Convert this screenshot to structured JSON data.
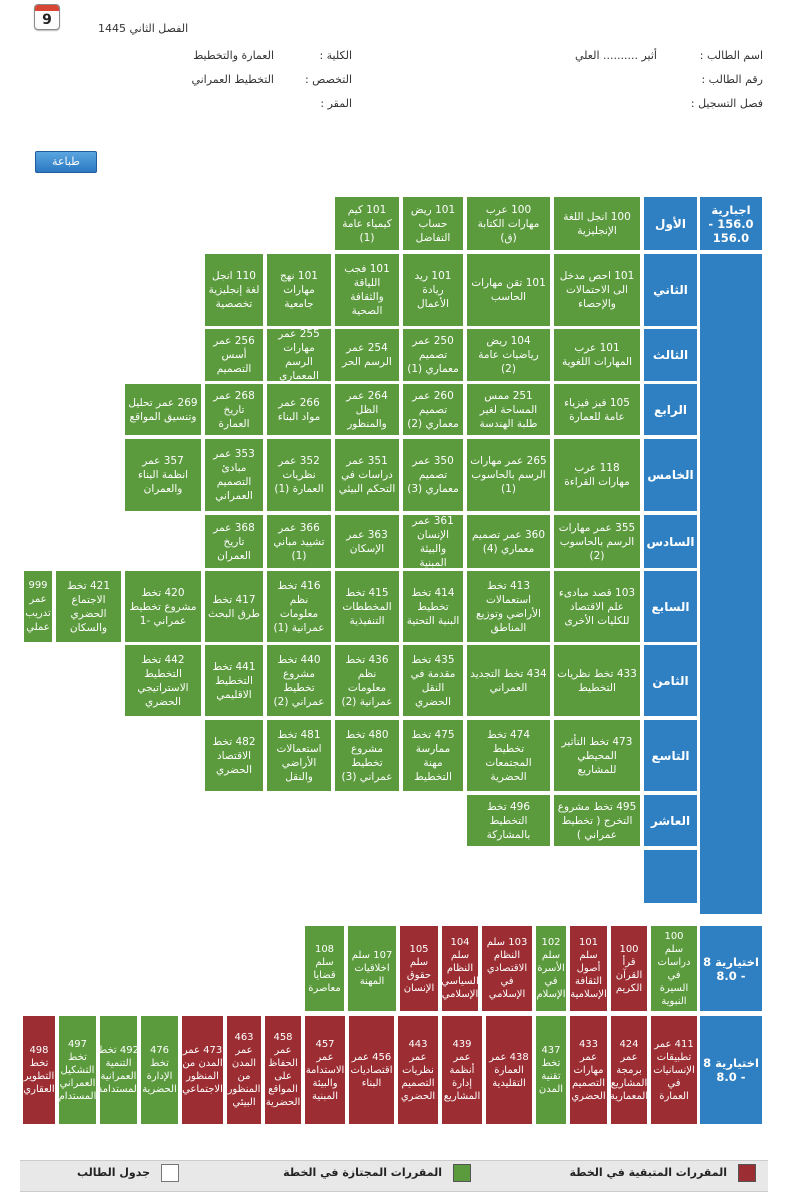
{
  "header": {
    "calendar_day": "9",
    "semester": "الفصل الثاني 1445",
    "student_name_label": "اسم الطالب :",
    "student_name_value": "أثير .......... العلي",
    "student_id_label": "رقم الطالب :",
    "reg_term_label": "فصل التسجيل :",
    "college_label": "الكلية :",
    "college_value": "العمارة والتخطيط",
    "major_label": "التخصص :",
    "major_value": "التخطيط العمراني",
    "campus_label": "المقر :"
  },
  "print_label": "طباعة",
  "mandatory_label": "اجبارية 156.0 - 156.0",
  "terms": {
    "t1": "الأول",
    "t2": "الثاني",
    "t3": "الثالث",
    "t4": "الرابع",
    "t5": "الخامس",
    "t6": "السادس",
    "t7": "السابع",
    "t8": "الثامن",
    "t9": "التاسع",
    "t10": "العاشر"
  },
  "courses": {
    "r1": [
      "100 انجل اللغة الإنجليزية",
      "100 عرب مهارات الكتابة (ق)",
      "101 ريض حساب التفاضل",
      "101 كيم كيمياء عامة (1)"
    ],
    "r2": [
      "101 احص مدخل الى الاحتمالات والإحصاء",
      "101 تقن مهارات الحاسب",
      "101 ريد ريادة الأعمال",
      "101 فجب اللياقة والثقافة الصحية",
      "101 نهج مهارات جامعية",
      "110 انجل لغة إنجليزية تخصصية"
    ],
    "r3": [
      "101 عرب المهارات اللغوية",
      "104 ريض رياضيات عامة (2)",
      "250 عمر تصميم معماري (1)",
      "254 عمر الرسم الحر",
      "255 عمر مهارات الرسم المعماري",
      "256 عمر أسس التصميم"
    ],
    "r4": [
      "105 فيز فيزياء عامة للعمارة",
      "251 ممس المساحة لغير طلبة الهندسة",
      "260 عمر تصميم معماري (2)",
      "264 عمر الظل والمنظور",
      "266 عمر مواد البناء",
      "268 عمر تاريخ العمارة",
      "269 عمر تحليل وتنسيق المواقع"
    ],
    "r5": [
      "118 عرب مهارات القراءة",
      "265 عمر مهارات الرسم بالحاسوب (1)",
      "350 عمر تصميم معماري (3)",
      "351 عمر دراسات في التحكم البيئي",
      "352 عمر نظريات العمارة (1)",
      "353 عمر مبادئ التصميم العمراني",
      "357 عمر انظمة البناء والعمران"
    ],
    "r6": [
      "355 عمر مهارات الرسم بالحاسوب (2)",
      "360 عمر تصميم معماري (4)",
      "361 عمر الإنسان والبيئة المبنية",
      "363 عمر الإسكان",
      "366 عمر تشييد مباني (1)",
      "368 عمر تاريخ العمران"
    ],
    "r7": [
      "103 قصد مبادىء علم الاقتصاد للكليات الأخرى",
      "413 تخط استعمالات الأراضي وتوزيع المناطق",
      "414 تخط تخطيط البنية التحتية",
      "415 تخط المخططات التنفيذية",
      "416 تخط نظم معلومات عمرانية (1)",
      "417 تخط طرق البحث",
      "420 تخط مشروع تخطيط عمراني -1",
      "421 تخط الاجتماع الحضري والسكان",
      "999 عمر تدريب عملي"
    ],
    "r8": [
      "433 تخط نظريات التخطيط",
      "434 تخط التجديد العمراني",
      "435 تخط مقدمة في النقل الحضري",
      "436 تخط نظم معلومات عمرانية (2)",
      "440 تخط مشروع تخطيط عمراني (2)",
      "441 تخط التخطيط الاقليمي",
      "442 تخط التخطيط الاستراتيجي الحضري"
    ],
    "r9": [
      "473 تخط التأثير المحيطي للمشاريع",
      "474 تخط تخطيط المجتمعات الحضرية",
      "475 تخط ممارسة مهنة التخطيط",
      "480 تخط مشروع تخطيط عمراني (3)",
      "481 تخط استعمالات الأراضي والنقل",
      "482 تخط الاقتصاد الحضري"
    ],
    "r10": [
      "495 تخط مشروع التخرج ( تخطيط عمراني )",
      "496 تخط التخطيط بالمشاركة"
    ]
  },
  "elective1_label": "اختيارية 8 - 8.0",
  "elective1": [
    {
      "t": "100 سلم دراسات في السيرة النبوية",
      "s": "g"
    },
    {
      "t": "100 قرأ القرآن الكريم",
      "s": "r"
    },
    {
      "t": "101 سلم أصول الثقافة الإسلامية",
      "s": "r"
    },
    {
      "t": "102 سلم الأسرة في الإسلام",
      "s": "g"
    },
    {
      "t": "103 سلم النظام الاقتصادي في الإسلامي",
      "s": "r"
    },
    {
      "t": "104 سلم النظام السياسي الإسلامي",
      "s": "r"
    },
    {
      "t": "105 سلم حقوق الإنسان",
      "s": "r"
    },
    {
      "t": "107 سلم اخلاقيات المهنة",
      "s": "g"
    },
    {
      "t": "108 سلم قضايا معاصرة",
      "s": "g"
    }
  ],
  "elective2_label": "اختيارية 8 - 8.0",
  "elective2": [
    {
      "t": "411 عمر تطبيقات الإنسانيات في العمارة",
      "s": "r"
    },
    {
      "t": "424 عمر برمجة المشاريع المعمارية",
      "s": "r"
    },
    {
      "t": "433 عمر مهارات التصميم الحضري",
      "s": "r"
    },
    {
      "t": "437 تخط تقنية المدن",
      "s": "g"
    },
    {
      "t": "438 عمر العمارة التقليدية",
      "s": "r"
    },
    {
      "t": "439 عمر أنظمة إدارة المشاريع",
      "s": "r"
    },
    {
      "t": "443 عمر نظريات التصميم الحضري",
      "s": "r"
    },
    {
      "t": "456 عمر اقتصاديات البناء",
      "s": "r"
    },
    {
      "t": "457 عمر الاستدامة والبيئة المبنية",
      "s": "r"
    },
    {
      "t": "458 عمر الحفاظ على المواقع الحضرية",
      "s": "r"
    },
    {
      "t": "463 عمر المدن من المنظور البيئي",
      "s": "r"
    },
    {
      "t": "473 عمر المدن من المنظور الاجتماعي",
      "s": "r"
    },
    {
      "t": "476 تخط الإدارة الحضرية",
      "s": "g"
    },
    {
      "t": "492 تخط التنمية العمرانية المستدامة",
      "s": "g"
    },
    {
      "t": "497 تخط التشكيل العمراني المستدام",
      "s": "g"
    },
    {
      "t": "498 تخط التطوير العقاري",
      "s": "r"
    }
  ],
  "legend": {
    "remaining": "المقررات المتبقية في الخطة",
    "passed": "المقررات المجتازة في الخطة",
    "schedule": "جدول الطالب"
  },
  "colors": {
    "passed": "#5b9a3d",
    "remaining": "#9b2d33",
    "term": "#2f80c2"
  }
}
